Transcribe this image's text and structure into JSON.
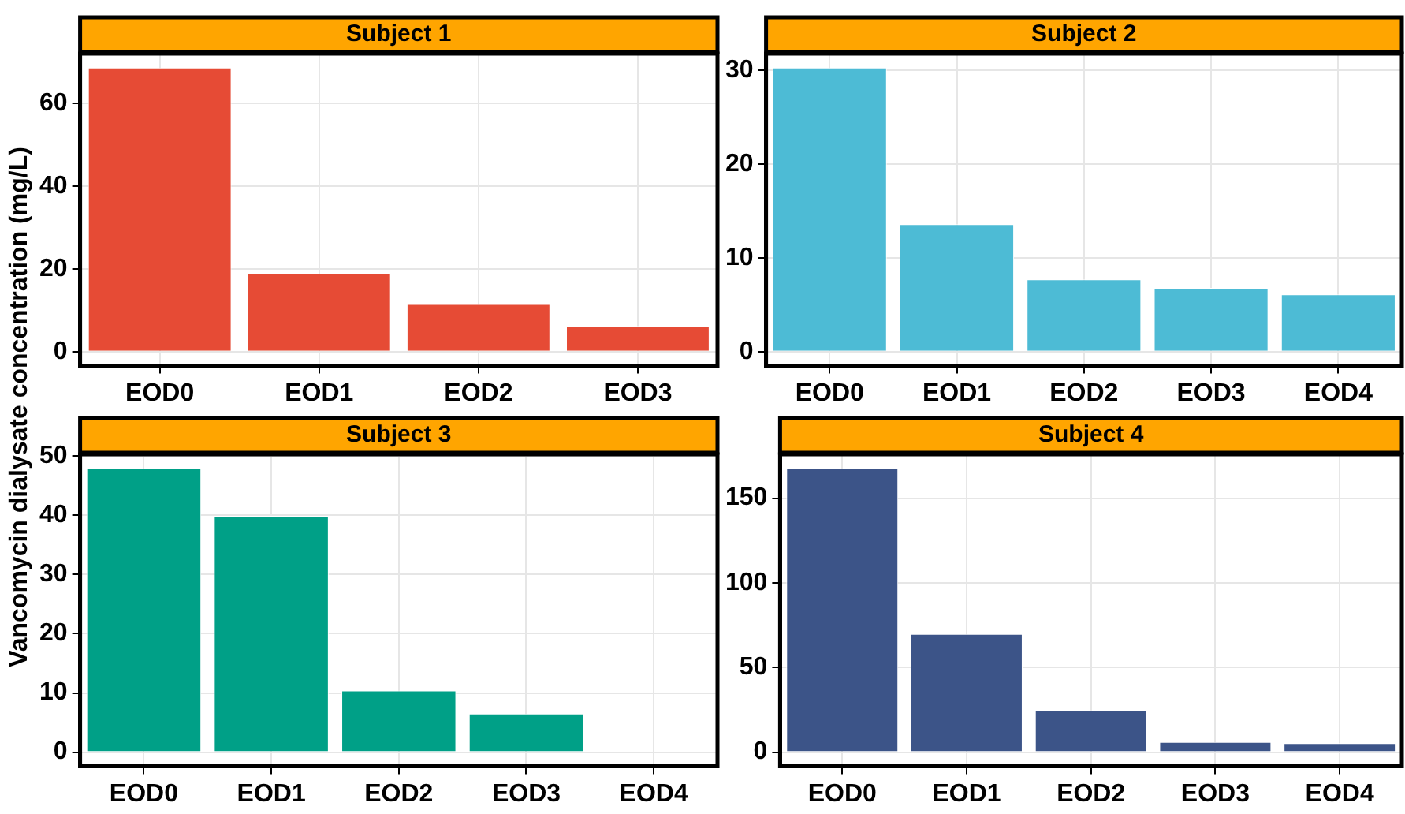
{
  "chart_data": [
    {
      "type": "bar",
      "title": "Subject 1",
      "ylabel": "Vancomycin dialysate concentration (mg/L)",
      "categories": [
        "EOD0",
        "EOD1",
        "EOD2",
        "EOD3"
      ],
      "values": [
        68.6,
        18.8,
        11.5,
        6.2
      ],
      "color": "#e64b35",
      "ylim": [
        -3.4,
        72
      ],
      "yticks": [
        0,
        20,
        40,
        60
      ],
      "grid": true
    },
    {
      "type": "bar",
      "title": "Subject 2",
      "categories": [
        "EOD0",
        "EOD1",
        "EOD2",
        "EOD3",
        "EOD4"
      ],
      "values": [
        30.3,
        13.6,
        7.7,
        6.8,
        6.1
      ],
      "color": "#4dbbd5",
      "ylim": [
        -1.5,
        31.8
      ],
      "yticks": [
        0,
        10,
        20,
        30
      ],
      "grid": true
    },
    {
      "type": "bar",
      "title": "Subject 3",
      "categories": [
        "EOD0",
        "EOD1",
        "EOD2",
        "EOD3",
        "EOD4"
      ],
      "values": [
        47.9,
        39.9,
        10.4,
        6.5,
        null
      ],
      "color": "#00a087",
      "ylim": [
        -2.4,
        50.3
      ],
      "yticks": [
        0,
        10,
        20,
        30,
        40,
        50
      ],
      "grid": true
    },
    {
      "type": "bar",
      "title": "Subject 4",
      "categories": [
        "EOD0",
        "EOD1",
        "EOD2",
        "EOD3",
        "EOD4"
      ],
      "values": [
        167.5,
        69.8,
        24.7,
        6.0,
        5.3
      ],
      "color": "#3c5488",
      "ylim": [
        -8.4,
        175.9
      ],
      "yticks": [
        0,
        50,
        100,
        150
      ],
      "grid": true
    }
  ]
}
